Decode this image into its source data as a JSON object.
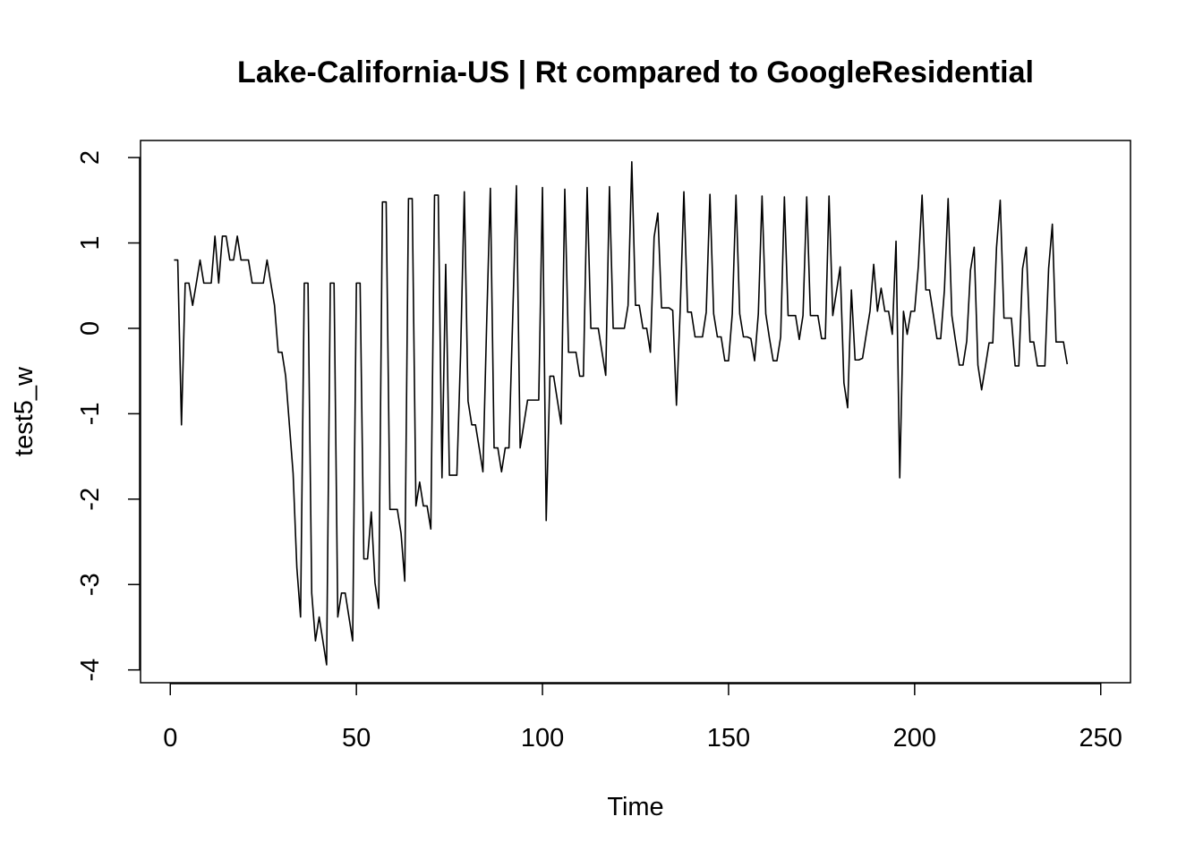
{
  "chart_data": {
    "type": "line",
    "title": "Lake-California-US | Rt compared to GoogleResidential",
    "xlabel": "Time",
    "ylabel": "test5_w",
    "xlim": [
      -8,
      258
    ],
    "ylim": [
      -4.15,
      2.2
    ],
    "x_ticks": [
      0,
      50,
      100,
      150,
      200,
      250
    ],
    "y_ticks": [
      -4,
      -3,
      -2,
      -1,
      0,
      1,
      2
    ],
    "x_tick_labels": [
      "0",
      "50",
      "100",
      "150",
      "200",
      "250"
    ],
    "y_tick_labels": [
      "-4",
      "-3",
      "-2",
      "-1",
      "0",
      "1",
      "2"
    ],
    "grid": false,
    "legend": "none",
    "series": [
      {
        "color": "#000000",
        "x_start": 1,
        "x_step": 1,
        "values": [
          0.8,
          0.8,
          -1.13,
          0.53,
          0.53,
          0.27,
          0.53,
          0.8,
          0.53,
          0.53,
          0.53,
          1.08,
          0.53,
          1.08,
          1.08,
          0.8,
          0.8,
          1.08,
          0.8,
          0.8,
          0.8,
          0.53,
          0.53,
          0.53,
          0.53,
          0.8,
          0.53,
          0.27,
          -0.28,
          -0.28,
          -0.56,
          -1.13,
          -1.7,
          -2.8,
          -3.38,
          0.53,
          0.53,
          -3.1,
          -3.66,
          -3.38,
          -3.66,
          -3.94,
          0.53,
          0.53,
          -3.38,
          -3.1,
          -3.1,
          -3.38,
          -3.66,
          0.53,
          0.53,
          -2.7,
          -2.7,
          -2.15,
          -2.98,
          -3.28,
          1.48,
          1.48,
          -2.12,
          -2.12,
          -2.12,
          -2.4,
          -2.96,
          1.52,
          1.52,
          -2.08,
          -1.8,
          -2.08,
          -2.08,
          -2.35,
          1.56,
          1.56,
          -1.75,
          0.75,
          -1.72,
          -1.72,
          -1.72,
          -0.3,
          1.6,
          -0.85,
          -1.13,
          -1.13,
          -1.4,
          -1.68,
          0.05,
          1.64,
          -1.4,
          -1.4,
          -1.68,
          -1.4,
          -1.4,
          0.12,
          1.67,
          -1.4,
          -1.12,
          -0.84,
          -0.84,
          -0.84,
          -0.84,
          1.65,
          -2.25,
          -0.56,
          -0.56,
          -0.84,
          -1.12,
          1.63,
          -0.28,
          -0.28,
          -0.28,
          -0.56,
          -0.56,
          1.65,
          0.0,
          0.0,
          0.0,
          -0.28,
          -0.55,
          1.66,
          0.0,
          0.0,
          0.0,
          0.0,
          0.27,
          1.95,
          0.27,
          0.27,
          0.0,
          0.0,
          -0.28,
          1.07,
          1.35,
          0.24,
          0.24,
          0.24,
          0.21,
          -0.9,
          0.21,
          1.6,
          0.19,
          0.19,
          -0.1,
          -0.1,
          -0.1,
          0.19,
          1.57,
          0.17,
          -0.1,
          -0.1,
          -0.38,
          -0.38,
          0.17,
          1.56,
          0.17,
          -0.1,
          -0.1,
          -0.12,
          -0.38,
          0.17,
          1.55,
          0.17,
          -0.12,
          -0.38,
          -0.38,
          -0.1,
          1.54,
          0.15,
          0.15,
          0.15,
          -0.13,
          0.15,
          1.54,
          0.15,
          0.15,
          0.15,
          -0.12,
          -0.12,
          1.55,
          0.15,
          0.43,
          0.72,
          -0.64,
          -0.93,
          0.45,
          -0.37,
          -0.37,
          -0.35,
          -0.07,
          0.2,
          0.75,
          0.2,
          0.47,
          0.2,
          0.2,
          -0.07,
          1.02,
          -1.75,
          0.2,
          -0.07,
          0.2,
          0.2,
          0.73,
          1.56,
          0.45,
          0.45,
          0.17,
          -0.12,
          -0.12,
          0.45,
          1.52,
          0.15,
          -0.15,
          -0.43,
          -0.43,
          -0.15,
          0.68,
          0.95,
          -0.43,
          -0.72,
          -0.45,
          -0.17,
          -0.17,
          0.95,
          1.5,
          0.12,
          0.12,
          0.12,
          -0.44,
          -0.44,
          0.7,
          0.95,
          -0.16,
          -0.16,
          -0.44,
          -0.44,
          -0.44,
          0.7,
          1.22,
          -0.16,
          -0.16,
          -0.16,
          -0.42
        ]
      }
    ]
  }
}
